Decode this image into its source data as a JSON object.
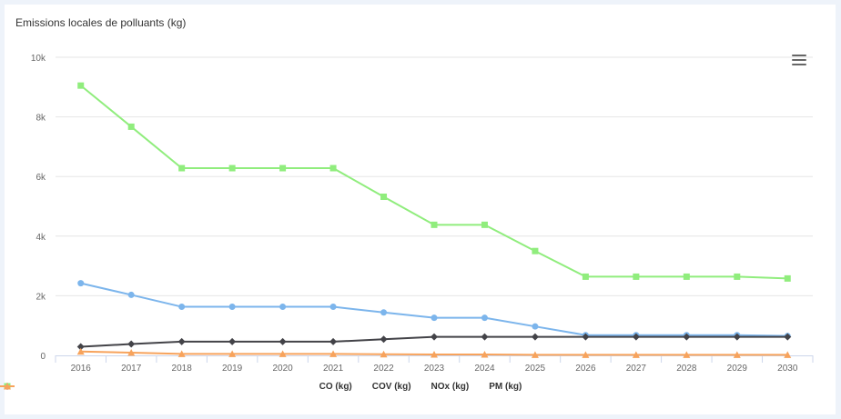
{
  "chart_data": {
    "type": "line",
    "title": "Emissions locales de polluants (kg)",
    "xlabel": "",
    "ylabel": "",
    "categories": [
      "2016",
      "2017",
      "2018",
      "2019",
      "2020",
      "2021",
      "2022",
      "2023",
      "2024",
      "2025",
      "2026",
      "2027",
      "2028",
      "2029",
      "2030"
    ],
    "ylim": [
      0,
      10000
    ],
    "yticks": [
      0,
      2000,
      4000,
      6000,
      8000,
      10000
    ],
    "ytick_labels": [
      "0",
      "2k",
      "4k",
      "6k",
      "8k",
      "10k"
    ],
    "grid": true,
    "legend_position": "bottom-center",
    "series": [
      {
        "name": "CO (kg)",
        "color": "#7cb5ec",
        "marker": "circle",
        "values": [
          2420,
          2030,
          1630,
          1630,
          1630,
          1630,
          1440,
          1260,
          1260,
          970,
          680,
          680,
          680,
          680,
          650
        ]
      },
      {
        "name": "COV (kg)",
        "color": "#434348",
        "marker": "diamond",
        "values": [
          290,
          380,
          460,
          460,
          460,
          460,
          540,
          620,
          620,
          620,
          620,
          620,
          620,
          620,
          620
        ]
      },
      {
        "name": "NOx (kg)",
        "color": "#90ed7d",
        "marker": "square",
        "values": [
          9050,
          7670,
          6280,
          6280,
          6280,
          6280,
          5320,
          4380,
          4380,
          3500,
          2640,
          2640,
          2640,
          2640,
          2580
        ]
      },
      {
        "name": "PM (kg)",
        "color": "#f7a35c",
        "marker": "triangle",
        "values": [
          130,
          90,
          50,
          50,
          50,
          50,
          40,
          30,
          30,
          20,
          20,
          20,
          20,
          20,
          20
        ]
      }
    ]
  },
  "toolbar": {
    "menu_icon": "hamburger-menu-icon"
  }
}
